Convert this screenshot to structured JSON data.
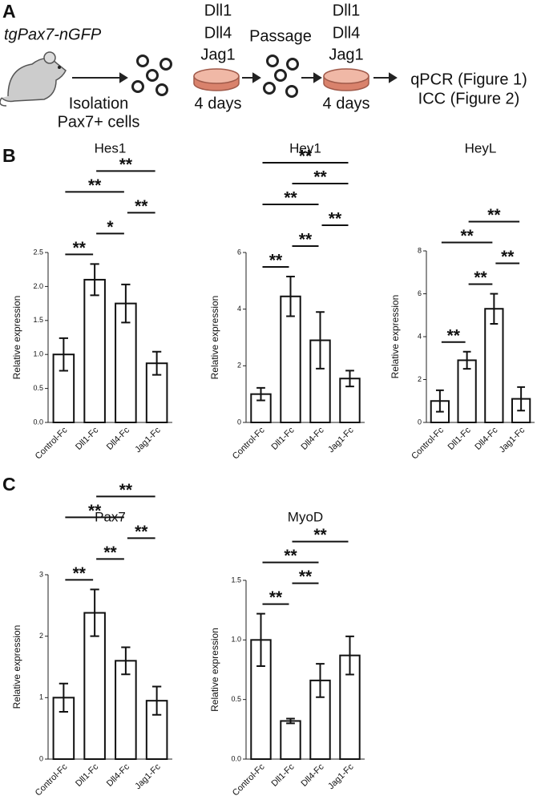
{
  "panels": [
    "A",
    "B",
    "C"
  ],
  "schematic": {
    "mouse_label": "tgPax7-nGFP",
    "isolation": [
      "Isolation",
      "Pax7+ cells"
    ],
    "ligands_1": [
      "Dll1",
      "Dll4",
      "Jag1"
    ],
    "duration_1": "4 days",
    "passage": "Passage",
    "ligands_2": [
      "Dll1",
      "Dll4",
      "Jag1"
    ],
    "duration_2": "4 days",
    "readouts": [
      "qPCR (Figure 1)",
      "ICC (Figure 2)"
    ]
  },
  "chart_data": [
    {
      "type": "bar",
      "title": "Hes1",
      "ylabel": "Relative expression",
      "categories": [
        "Control-Fc",
        "Dll1-Fc",
        "Dll4-Fc",
        "Jag1-Fc"
      ],
      "values": [
        1.0,
        2.1,
        1.75,
        0.87
      ],
      "errors": [
        0.24,
        0.23,
        0.28,
        0.17
      ],
      "ylim": [
        0,
        2.5
      ],
      "yticks": [
        {
          "value": 0,
          "label": "0.0"
        },
        0.5,
        {
          "value": 1,
          "label": "1.0"
        },
        1.5,
        {
          "value": 2,
          "label": "2.0"
        },
        2.5
      ],
      "annotations": [
        {
          "from": "Control-Fc",
          "to": "Dll1-Fc",
          "label": "**"
        },
        {
          "from": "Dll1-Fc",
          "to": "Dll4-Fc",
          "label": "*"
        },
        {
          "from": "Dll4-Fc",
          "to": "Jag1-Fc",
          "label": "**"
        },
        {
          "from": "Control-Fc",
          "to": "Dll4-Fc",
          "label": "**"
        },
        {
          "from": "Dll1-Fc",
          "to": "Jag1-Fc",
          "label": "**"
        }
      ]
    },
    {
      "type": "bar",
      "title": "Hey1",
      "ylabel": "Relative expression",
      "categories": [
        "Control-Fc",
        "Dll1-Fc",
        "Dll4-Fc",
        "Jag1-Fc"
      ],
      "values": [
        1.0,
        4.45,
        2.9,
        1.55
      ],
      "errors": [
        0.22,
        0.7,
        1.0,
        0.28
      ],
      "ylim": [
        0,
        6
      ],
      "yticks": [
        0,
        2,
        4,
        6
      ],
      "annotations": [
        {
          "from": "Control-Fc",
          "to": "Dll1-Fc",
          "label": "**"
        },
        {
          "from": "Dll1-Fc",
          "to": "Dll4-Fc",
          "label": "**"
        },
        {
          "from": "Dll4-Fc",
          "to": "Jag1-Fc",
          "label": "**"
        },
        {
          "from": "Control-Fc",
          "to": "Dll4-Fc",
          "label": "**"
        },
        {
          "from": "Dll1-Fc",
          "to": "Jag1-Fc",
          "label": "**"
        },
        {
          "from": "Control-Fc",
          "to": "Jag1-Fc",
          "label": "**"
        }
      ]
    },
    {
      "type": "bar",
      "title": "HeyL",
      "ylabel": "Relative expression",
      "categories": [
        "Control-Fc",
        "Dll1-Fc",
        "Dll4-Fc",
        "Jag1-Fc"
      ],
      "values": [
        1.0,
        2.9,
        5.3,
        1.1
      ],
      "errors": [
        0.5,
        0.4,
        0.7,
        0.55
      ],
      "ylim": [
        0,
        8
      ],
      "yticks": [
        0,
        2,
        4,
        6,
        8
      ],
      "annotations": [
        {
          "from": "Control-Fc",
          "to": "Dll1-Fc",
          "label": "**"
        },
        {
          "from": "Dll1-Fc",
          "to": "Dll4-Fc",
          "label": "**"
        },
        {
          "from": "Dll4-Fc",
          "to": "Jag1-Fc",
          "label": "**"
        },
        {
          "from": "Control-Fc",
          "to": "Dll4-Fc",
          "label": "**"
        },
        {
          "from": "Dll1-Fc",
          "to": "Jag1-Fc",
          "label": "**"
        }
      ]
    },
    {
      "type": "bar",
      "title": "Pax7",
      "ylabel": "Relative expression",
      "categories": [
        "Control-Fc",
        "Dll1-Fc",
        "Dll4-Fc",
        "Jag1-Fc"
      ],
      "values": [
        1.0,
        2.38,
        1.6,
        0.95
      ],
      "errors": [
        0.23,
        0.38,
        0.22,
        0.23
      ],
      "ylim": [
        0,
        3
      ],
      "yticks": [
        0,
        1,
        2,
        3
      ],
      "annotations": [
        {
          "from": "Control-Fc",
          "to": "Dll1-Fc",
          "label": "**"
        },
        {
          "from": "Dll1-Fc",
          "to": "Dll4-Fc",
          "label": "**"
        },
        {
          "from": "Dll4-Fc",
          "to": "Jag1-Fc",
          "label": "**"
        },
        {
          "from": "Control-Fc",
          "to": "Dll4-Fc",
          "label": "**"
        },
        {
          "from": "Dll1-Fc",
          "to": "Jag1-Fc",
          "label": "**"
        }
      ]
    },
    {
      "type": "bar",
      "title": "MyoD",
      "ylabel": "Relative expression",
      "categories": [
        "Control-Fc",
        "Dll1-Fc",
        "Dll4-Fc",
        "Jag1-Fc"
      ],
      "values": [
        1.0,
        0.32,
        0.66,
        0.87
      ],
      "errors": [
        0.22,
        0.02,
        0.14,
        0.16
      ],
      "ylim": [
        0,
        1.5
      ],
      "yticks": [
        {
          "value": 0,
          "label": "0.0"
        },
        0.5,
        {
          "value": 1,
          "label": "1.0"
        },
        1.5
      ],
      "annotations": [
        {
          "from": "Control-Fc",
          "to": "Dll1-Fc",
          "label": "**"
        },
        {
          "from": "Dll1-Fc",
          "to": "Dll4-Fc",
          "label": "**"
        },
        {
          "from": "Control-Fc",
          "to": "Dll4-Fc",
          "label": "**"
        },
        {
          "from": "Dll1-Fc",
          "to": "Jag1-Fc",
          "label": "**"
        }
      ]
    }
  ]
}
